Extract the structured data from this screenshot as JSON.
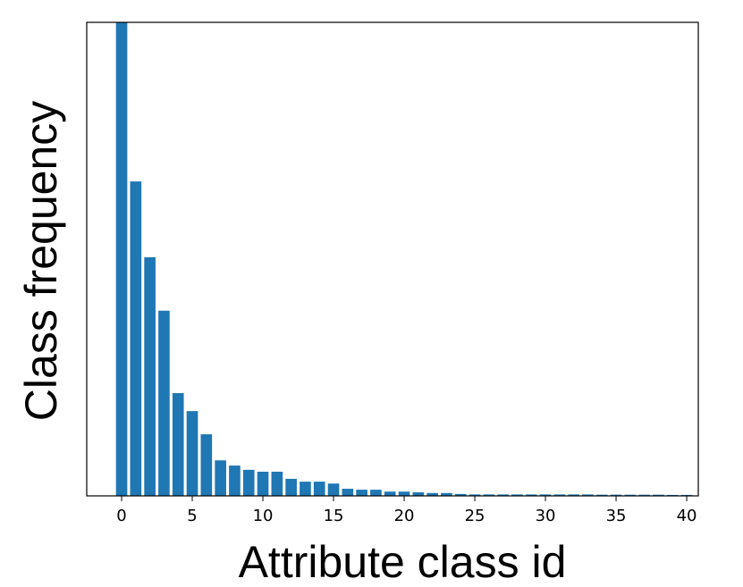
{
  "chart_data": {
    "type": "bar",
    "xlabel": "Attribute class id",
    "ylabel": "Class frequency",
    "x": [
      0,
      1,
      2,
      3,
      4,
      5,
      6,
      7,
      8,
      9,
      10,
      11,
      12,
      13,
      14,
      15,
      16,
      17,
      18,
      19,
      20,
      21,
      22,
      23,
      24,
      25,
      26,
      27,
      28,
      29,
      30,
      31,
      32,
      33,
      34,
      35,
      36,
      37,
      38,
      39,
      40
    ],
    "values": [
      100,
      66.4,
      50.4,
      39.1,
      21.7,
      17.9,
      13.0,
      7.5,
      6.4,
      5.5,
      5.1,
      5.1,
      3.6,
      3.0,
      3.0,
      2.6,
      1.5,
      1.3,
      1.3,
      0.9,
      0.9,
      0.75,
      0.6,
      0.6,
      0.4,
      0.3,
      0.3,
      0.3,
      0.3,
      0.3,
      0.3,
      0.3,
      0.3,
      0.3,
      0.25,
      0.25,
      0.25,
      0.25,
      0.25,
      0.2,
      0.2
    ],
    "color": "#1f77b4",
    "xlim": [
      -2.47,
      40.82
    ],
    "xticks": [
      0,
      5,
      10,
      15,
      20,
      25,
      30,
      35,
      40
    ],
    "ylim": [
      0,
      100
    ]
  }
}
